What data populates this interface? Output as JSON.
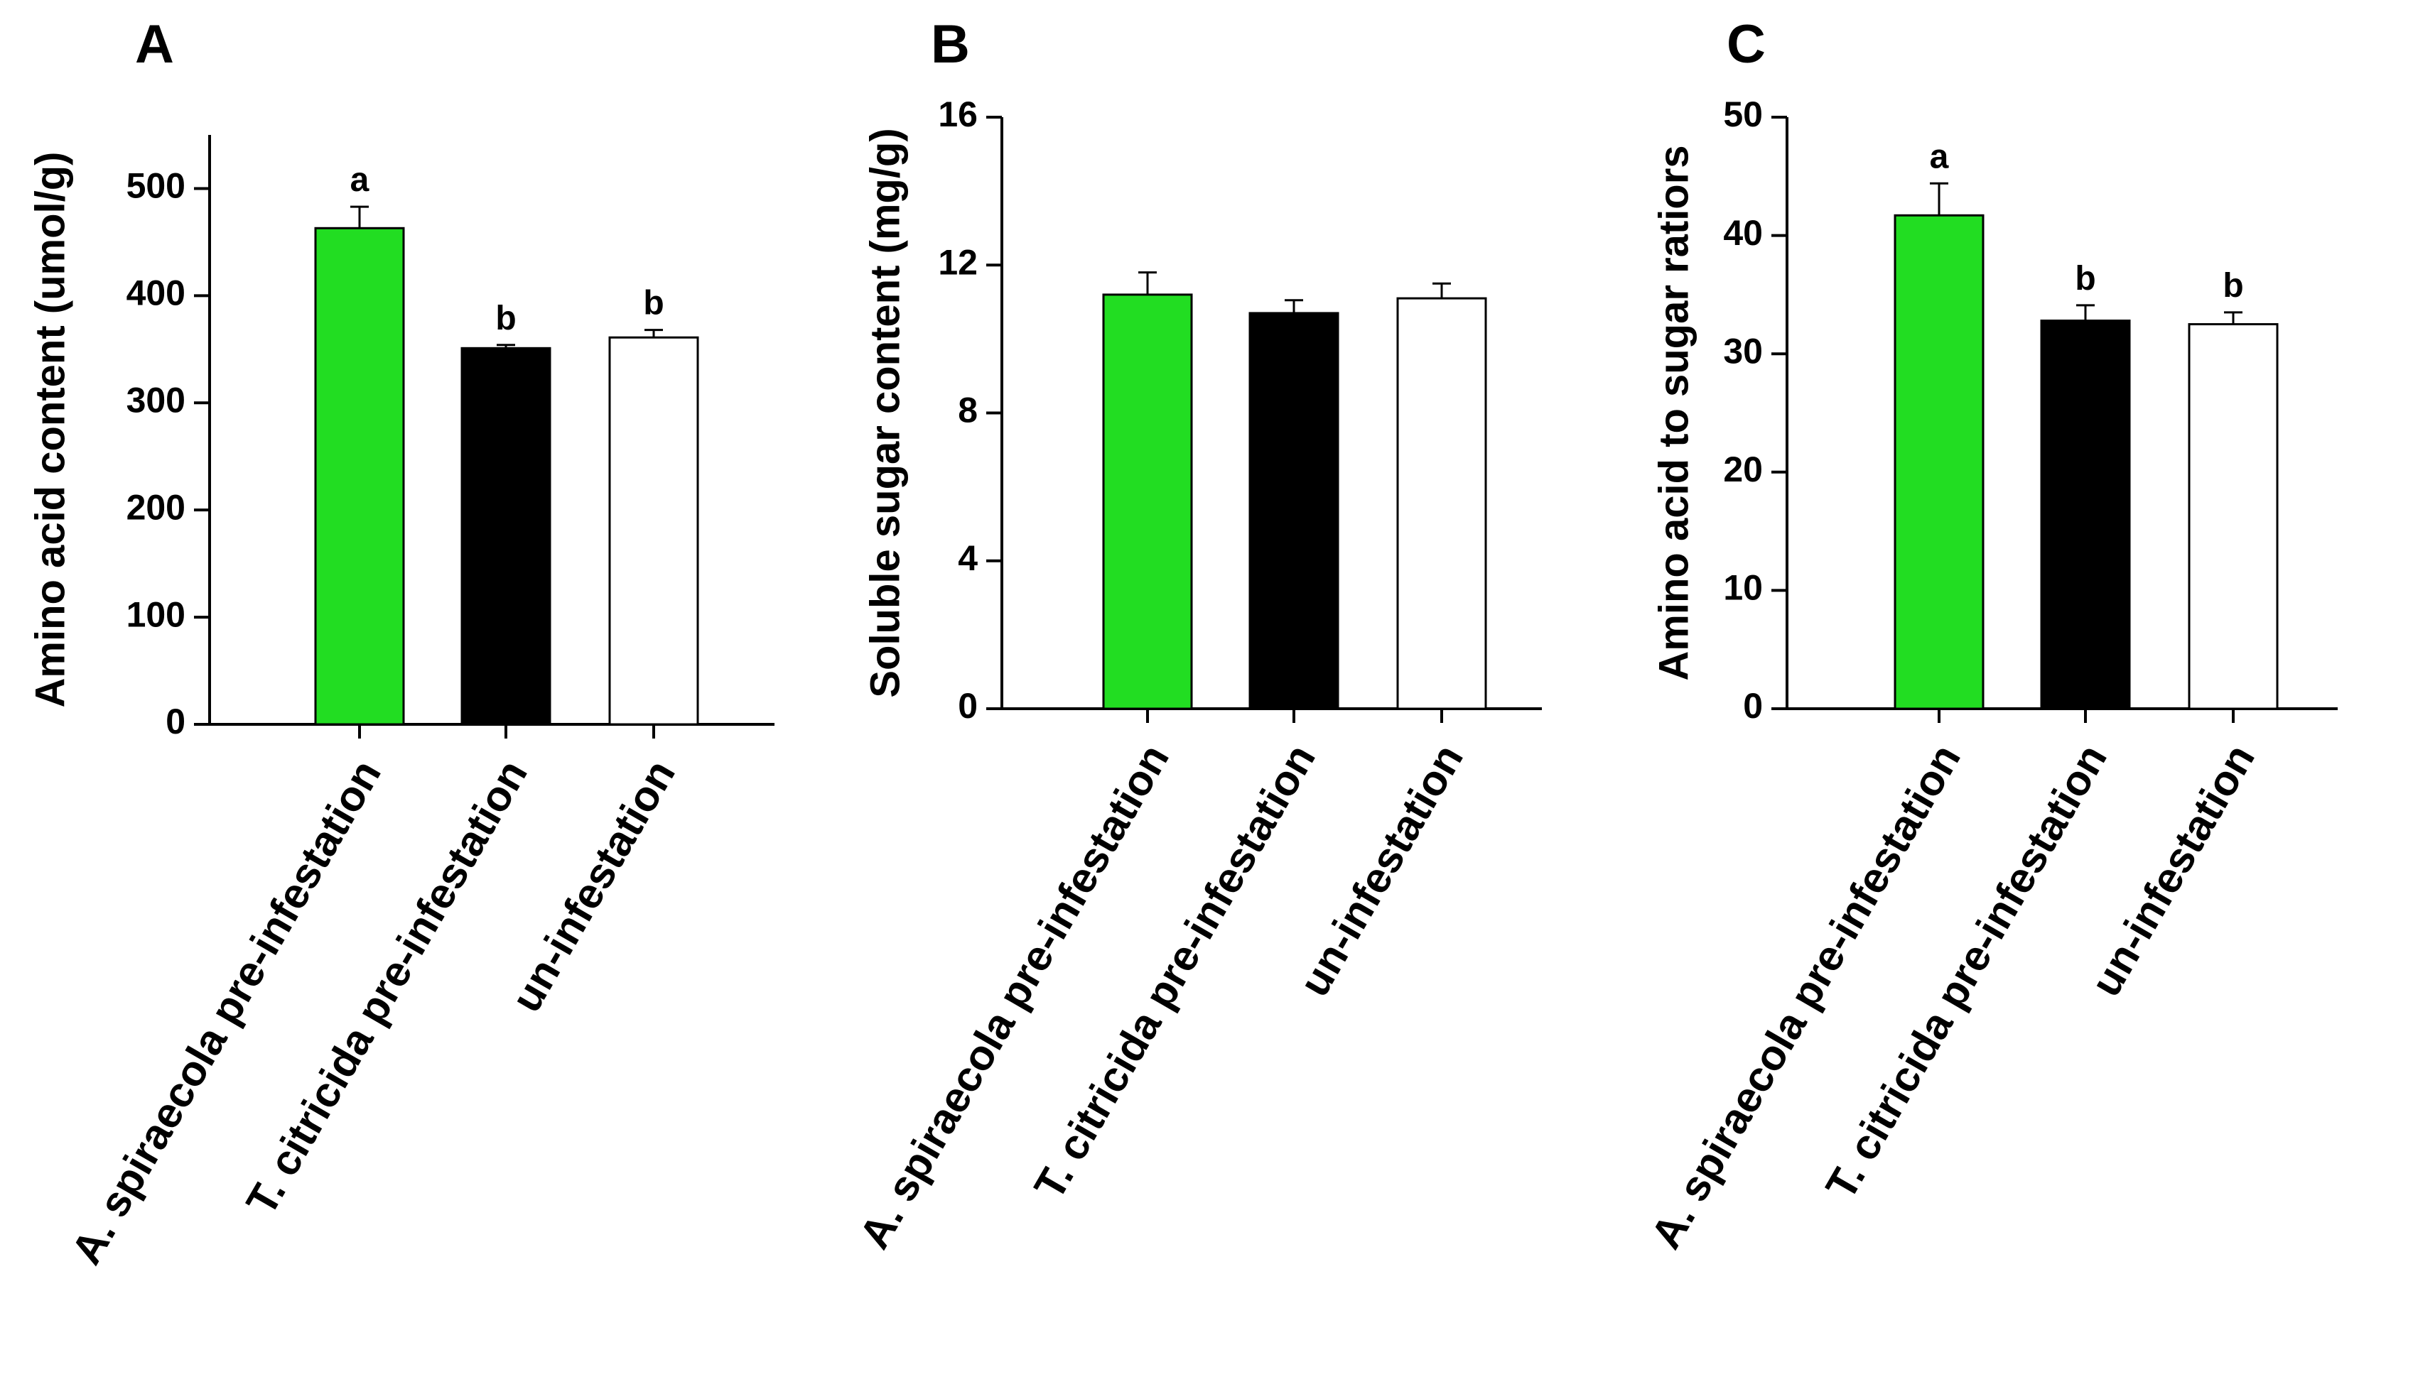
{
  "chart_data": [
    {
      "type": "bar",
      "panel_label": "A",
      "ylabel": "Amino acid content (umol/g)",
      "ylim": [
        0,
        550
      ],
      "yticks": [
        0,
        100,
        200,
        300,
        400,
        500
      ],
      "categories": [
        "A. spiraecola pre-infestation",
        "T. citricida pre-infestation",
        "un-infestation"
      ],
      "values": [
        463,
        351,
        361
      ],
      "errors": [
        20,
        3,
        7
      ],
      "significance": [
        "a",
        "b",
        "b"
      ],
      "colors": [
        "#22dd22",
        "#000000",
        "#ffffff"
      ]
    },
    {
      "type": "bar",
      "panel_label": "B",
      "ylabel": "Soluble sugar content (mg/g)",
      "ylim": [
        0,
        16
      ],
      "yticks": [
        0,
        4,
        8,
        12,
        16
      ],
      "categories": [
        "A. spiraecola pre-infestation",
        "T. citricida pre-infestation",
        "un-infestation"
      ],
      "values": [
        11.2,
        10.7,
        11.1
      ],
      "errors": [
        0.6,
        0.35,
        0.4
      ],
      "significance": [
        "",
        "",
        ""
      ],
      "colors": [
        "#22dd22",
        "#000000",
        "#ffffff"
      ]
    },
    {
      "type": "bar",
      "panel_label": "C",
      "ylabel": "Amino acid to sugar ratiors",
      "ylim": [
        0,
        50
      ],
      "yticks": [
        0,
        10,
        20,
        30,
        40,
        50
      ],
      "categories": [
        "A. spiraecola pre-infestation",
        "T. citricida pre-infestation",
        "un-infestation"
      ],
      "values": [
        41.7,
        32.8,
        32.5
      ],
      "errors": [
        2.7,
        1.3,
        1.0
      ],
      "significance": [
        "a",
        "b",
        "b"
      ],
      "colors": [
        "#22dd22",
        "#000000",
        "#ffffff"
      ]
    }
  ]
}
